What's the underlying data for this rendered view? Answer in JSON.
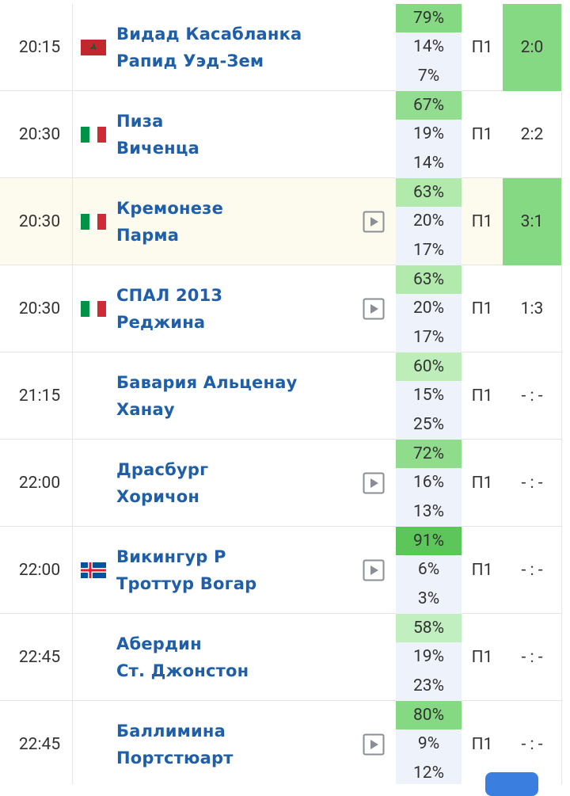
{
  "rows": [
    {
      "time": "20:15",
      "flag": "ma",
      "home": "Видад Касабланка",
      "away": "Рапид Уэд-Зем",
      "probs": [
        "79%",
        "14%",
        "7%"
      ],
      "top_color": "#86d983",
      "tip": "П1",
      "score": "2:0",
      "score_win": true,
      "highlight": false,
      "video": false
    },
    {
      "time": "20:30",
      "flag": "it",
      "home": "Пиза",
      "away": "Виченца",
      "probs": [
        "67%",
        "19%",
        "14%"
      ],
      "top_color": "#93dd90",
      "tip": "П1",
      "score": "2:2",
      "score_win": false,
      "highlight": false,
      "video": false
    },
    {
      "time": "20:30",
      "flag": "it",
      "home": "Кремонезе",
      "away": "Парма",
      "probs": [
        "63%",
        "20%",
        "17%"
      ],
      "top_color": "#b2eaae",
      "tip": "П1",
      "score": "3:1",
      "score_win": true,
      "highlight": true,
      "video": true
    },
    {
      "time": "20:30",
      "flag": "it",
      "home": "СПАЛ 2013",
      "away": "Реджина",
      "probs": [
        "63%",
        "20%",
        "17%"
      ],
      "top_color": "#b2eaae",
      "tip": "П1",
      "score": "1:3",
      "score_win": false,
      "highlight": false,
      "video": true
    },
    {
      "time": "21:15",
      "flag": null,
      "home": "Бавария Альценау",
      "away": "Ханау",
      "probs": [
        "60%",
        "15%",
        "25%"
      ],
      "top_color": "#bdeeb9",
      "tip": "П1",
      "score": "- : -",
      "score_win": false,
      "highlight": false,
      "video": false
    },
    {
      "time": "22:00",
      "flag": null,
      "home": "Драсбург",
      "away": "Хоричон",
      "probs": [
        "72%",
        "16%",
        "13%"
      ],
      "top_color": "#8fdc8c",
      "tip": "П1",
      "score": "- : -",
      "score_win": false,
      "highlight": false,
      "video": true
    },
    {
      "time": "22:00",
      "flag": "is",
      "home": "Викингур Р",
      "away": "Троттур Вогар",
      "probs": [
        "91%",
        "6%",
        "3%"
      ],
      "top_color": "#5cc65a",
      "tip": "П1",
      "score": "- : -",
      "score_win": false,
      "highlight": false,
      "video": true
    },
    {
      "time": "22:45",
      "flag": null,
      "home": "Абердин",
      "away": "Ст. Джонстон",
      "probs": [
        "58%",
        "19%",
        "23%"
      ],
      "top_color": "#c2efbf",
      "tip": "П1",
      "score": "- : -",
      "score_win": false,
      "highlight": false,
      "video": false
    },
    {
      "time": "22:45",
      "flag": null,
      "home": "Баллимина",
      "away": "Портстюарт",
      "probs": [
        "80%",
        "9%",
        "12%"
      ],
      "top_color": "#86d983",
      "tip": "П1",
      "score": "- : -",
      "score_win": false,
      "highlight": false,
      "video": true
    }
  ]
}
